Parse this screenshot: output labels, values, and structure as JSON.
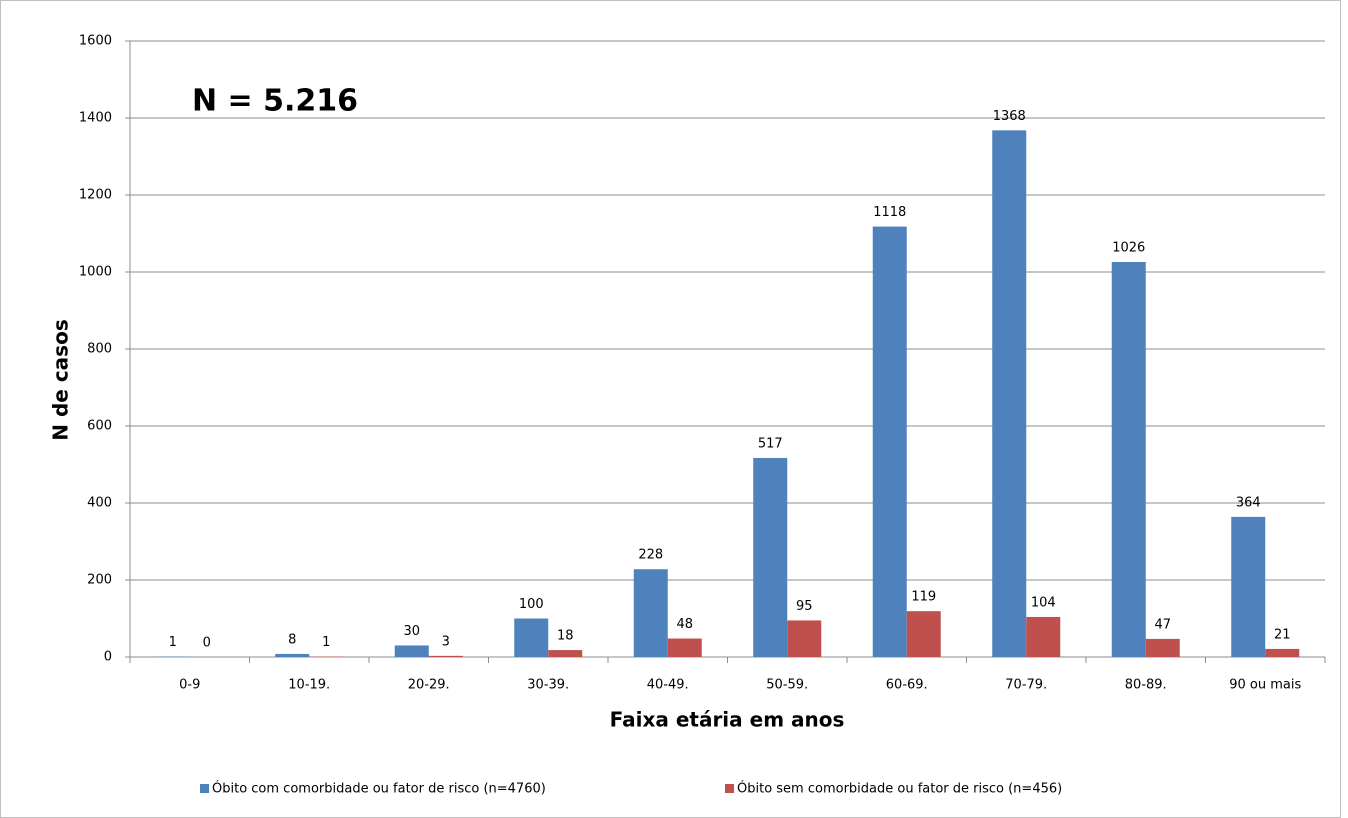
{
  "chart_data": {
    "type": "bar",
    "annotation": "N = 5.216",
    "x_label": "Faixa etária em anos",
    "y_label": "N de casos",
    "categories": [
      "0-9",
      "10-19.",
      "20-29.",
      "30-39.",
      "40-49.",
      "50-59.",
      "60-69.",
      "70-79.",
      "80-89.",
      "90 ou mais"
    ],
    "series": [
      {
        "name": "Óbito com comorbidade ou fator de risco (n=4760)",
        "color": "#4f81bd",
        "values": [
          1,
          8,
          30,
          100,
          228,
          517,
          1118,
          1368,
          1026,
          364
        ]
      },
      {
        "name": "Óbito sem comorbidade ou fator de risco (n=456)",
        "color": "#c0504d",
        "values": [
          0,
          1,
          3,
          18,
          48,
          95,
          119,
          104,
          47,
          21
        ]
      }
    ],
    "ylim": [
      0,
      1600
    ],
    "yticks": [
      0,
      200,
      400,
      600,
      800,
      1000,
      1200,
      1400,
      1600
    ],
    "grid": true,
    "legend": "bottom"
  }
}
